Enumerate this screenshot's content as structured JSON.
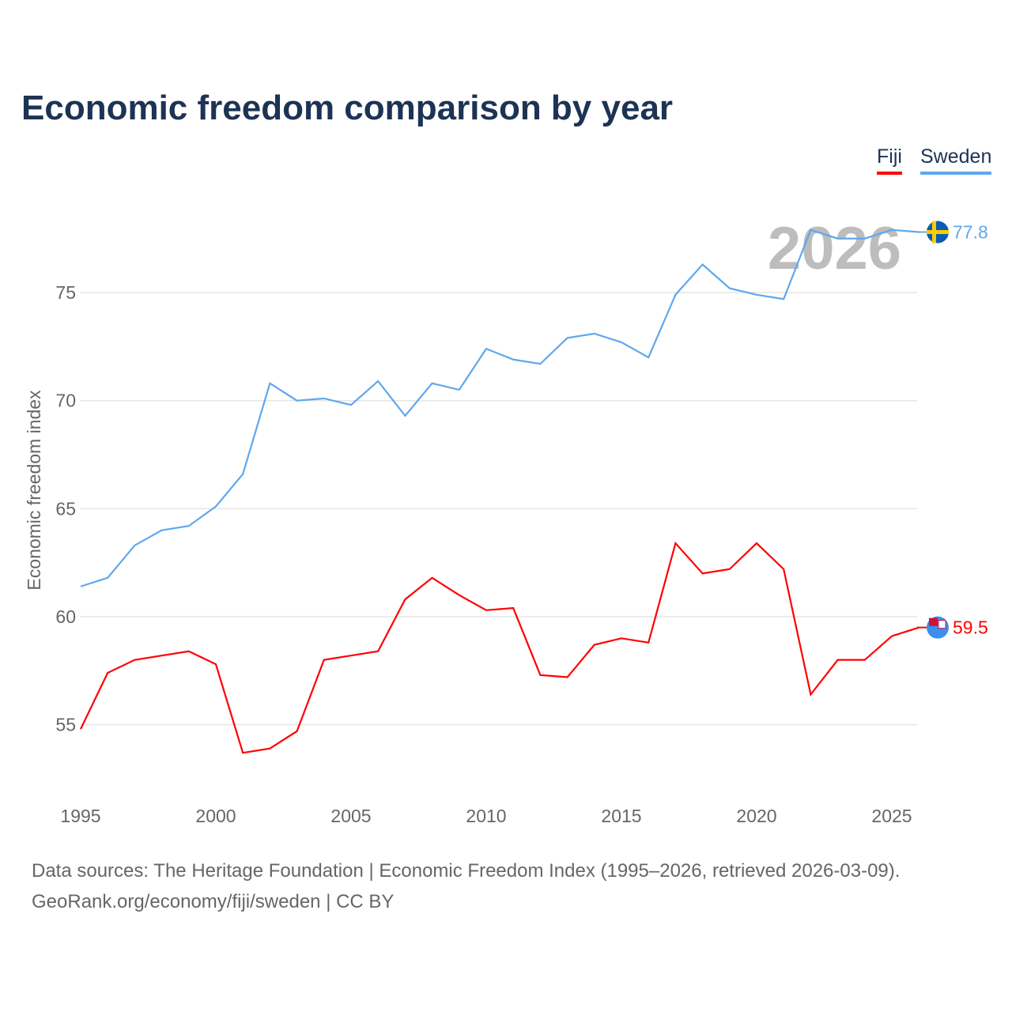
{
  "title": "Economic freedom comparison by year",
  "legend": [
    "Fiji",
    "Sweden"
  ],
  "year_watermark": "2026",
  "footer": {
    "line1": "Data sources: The Heritage Foundation | Economic Freedom Index (1995–2026, retrieved 2026-03-09).",
    "line2": "GeoRank.org/economy/fiji/sweden | CC BY"
  },
  "chart_data": {
    "type": "line",
    "title": "Economic freedom comparison by year",
    "xlabel": "",
    "ylabel": "Economic freedom index",
    "x": [
      1995,
      1996,
      1997,
      1998,
      1999,
      2000,
      2001,
      2002,
      2003,
      2004,
      2005,
      2006,
      2007,
      2008,
      2009,
      2010,
      2011,
      2012,
      2013,
      2014,
      2015,
      2016,
      2017,
      2018,
      2019,
      2020,
      2021,
      2022,
      2023,
      2024,
      2025,
      2026
    ],
    "xticks": [
      1995,
      2000,
      2005,
      2010,
      2015,
      2020,
      2025
    ],
    "yticks": [
      55,
      60,
      65,
      70,
      75
    ],
    "xlim": [
      1995,
      2026
    ],
    "ylim": [
      52.5,
      80
    ],
    "grid": true,
    "legend_position": "top-right",
    "series": [
      {
        "name": "Fiji",
        "color": "#ff0000",
        "end_label": "59.5",
        "values": [
          54.8,
          57.4,
          58.0,
          58.2,
          58.4,
          57.8,
          53.7,
          53.9,
          54.7,
          58.0,
          58.2,
          58.4,
          60.8,
          61.8,
          61.0,
          60.3,
          60.4,
          57.3,
          57.2,
          58.7,
          59.0,
          58.8,
          63.4,
          62.0,
          62.2,
          63.4,
          62.2,
          56.4,
          58.0,
          58.0,
          59.1,
          59.5
        ]
      },
      {
        "name": "Sweden",
        "color": "#5fa8ec",
        "end_label": "77.8",
        "values": [
          61.4,
          61.8,
          63.3,
          64.0,
          64.2,
          65.1,
          66.6,
          70.8,
          70.0,
          70.1,
          69.8,
          70.9,
          69.3,
          70.8,
          70.5,
          72.4,
          71.9,
          71.7,
          72.9,
          73.1,
          72.7,
          72.0,
          74.9,
          76.3,
          75.2,
          74.9,
          74.7,
          77.9,
          77.5,
          77.5,
          77.9,
          77.8
        ]
      }
    ]
  }
}
